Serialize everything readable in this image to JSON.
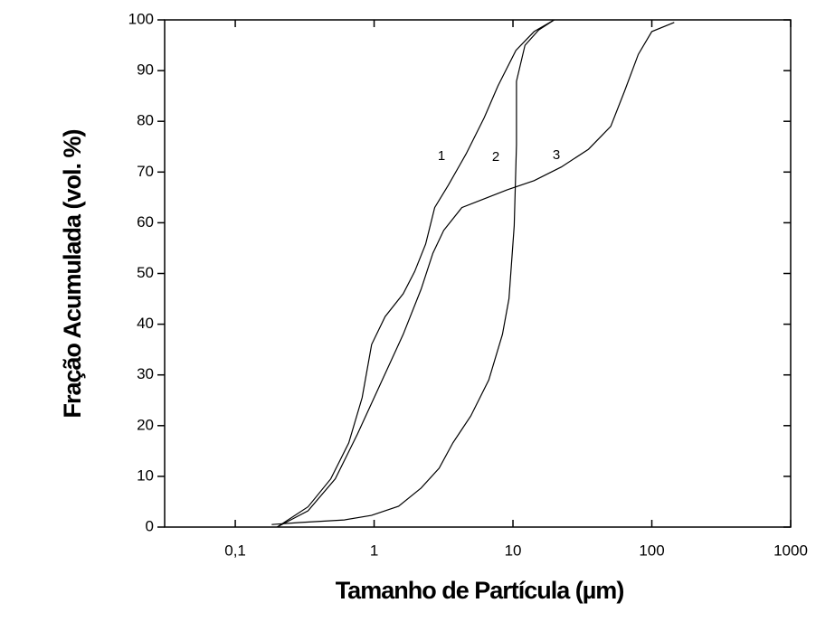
{
  "chart_data": {
    "type": "line",
    "x_label": "Tamanho de Partícula (µm)",
    "y_label": "Fração Acumulada (vol. %)",
    "x_log": true,
    "xlim": [
      0.031,
      1000
    ],
    "ylim": [
      0,
      100
    ],
    "xticks": [
      {
        "value": 0.1,
        "label": "0,1"
      },
      1,
      10,
      100,
      1000
    ],
    "yticks": [
      0,
      10,
      20,
      30,
      40,
      50,
      60,
      70,
      80,
      90,
      100
    ],
    "series": [
      {
        "name": "1",
        "color": "#000000",
        "x": [
          0.2,
          0.334,
          0.487,
          0.657,
          0.82,
          0.96,
          1.2,
          1.62,
          1.96,
          2.35,
          2.73,
          3.42,
          4.6,
          6.2,
          7.8,
          10.5,
          14.2,
          19.8
        ],
        "values": [
          0,
          4,
          9.5,
          16.6,
          25.5,
          36,
          41.5,
          46,
          50.4,
          55.8,
          63,
          67.4,
          73.6,
          80.7,
          87,
          94,
          97.7,
          100
        ]
      },
      {
        "name": "2",
        "color": "#000000",
        "x": [
          0.183,
          0.288,
          0.61,
          0.956,
          1.5,
          2.18,
          2.94,
          3.69,
          4.97,
          6.7,
          8.4,
          9.35,
          10.2,
          10.6,
          10.6,
          12.2,
          15.3,
          19.8
        ],
        "values": [
          0.5,
          0.9,
          1.4,
          2.3,
          4.1,
          7.7,
          11.6,
          16.6,
          21.9,
          29,
          38,
          45,
          59.4,
          75.4,
          87.9,
          95,
          98,
          100
        ]
      },
      {
        "name": "3",
        "color": "#000000",
        "x": [
          0.2,
          0.334,
          0.525,
          0.76,
          1.11,
          1.62,
          2.18,
          2.65,
          3.17,
          4.28,
          5.8,
          9.1,
          14.2,
          22.3,
          35,
          50.6,
          63.7,
          80,
          100,
          145
        ],
        "values": [
          0,
          3.2,
          9.5,
          18.4,
          28.2,
          38,
          46.9,
          54,
          58.5,
          63,
          64.4,
          66.5,
          68.3,
          71,
          74.5,
          79,
          86,
          93.2,
          97.7,
          99.5
        ]
      }
    ]
  }
}
